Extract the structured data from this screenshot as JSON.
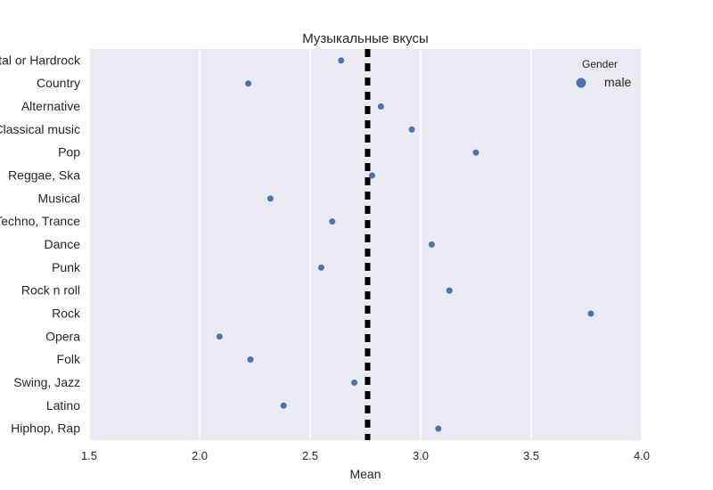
{
  "chart_data": {
    "type": "scatter",
    "title": "Музыкальные вкусы",
    "xlabel": "Mean",
    "ylabel": "",
    "xlim": [
      1.5,
      4.0
    ],
    "xticks": [
      "1.5",
      "2.0",
      "2.5",
      "3.0",
      "3.5",
      "4.0"
    ],
    "grid": true,
    "legend": {
      "title": "Gender",
      "placement": "top-right"
    },
    "categories": [
      "Metal or Hardrock",
      "Country",
      "Alternative",
      "Classical music",
      "Pop",
      "Reggae, Ska",
      "Musical",
      "Techno, Trance",
      "Dance",
      "Punk",
      "Rock n roll",
      "Rock",
      "Opera",
      "Folk",
      "Swing, Jazz",
      "Latino",
      "Hiphop, Rap"
    ],
    "series": [
      {
        "name": "male",
        "color": "#4c72b0",
        "values": [
          2.64,
          2.22,
          2.82,
          2.96,
          3.25,
          2.78,
          2.32,
          2.6,
          3.05,
          2.55,
          3.13,
          3.77,
          2.09,
          2.23,
          2.7,
          2.38,
          3.08
        ]
      }
    ],
    "reference_line": {
      "x": 2.76,
      "style": "dashed",
      "color": "#000000"
    }
  }
}
